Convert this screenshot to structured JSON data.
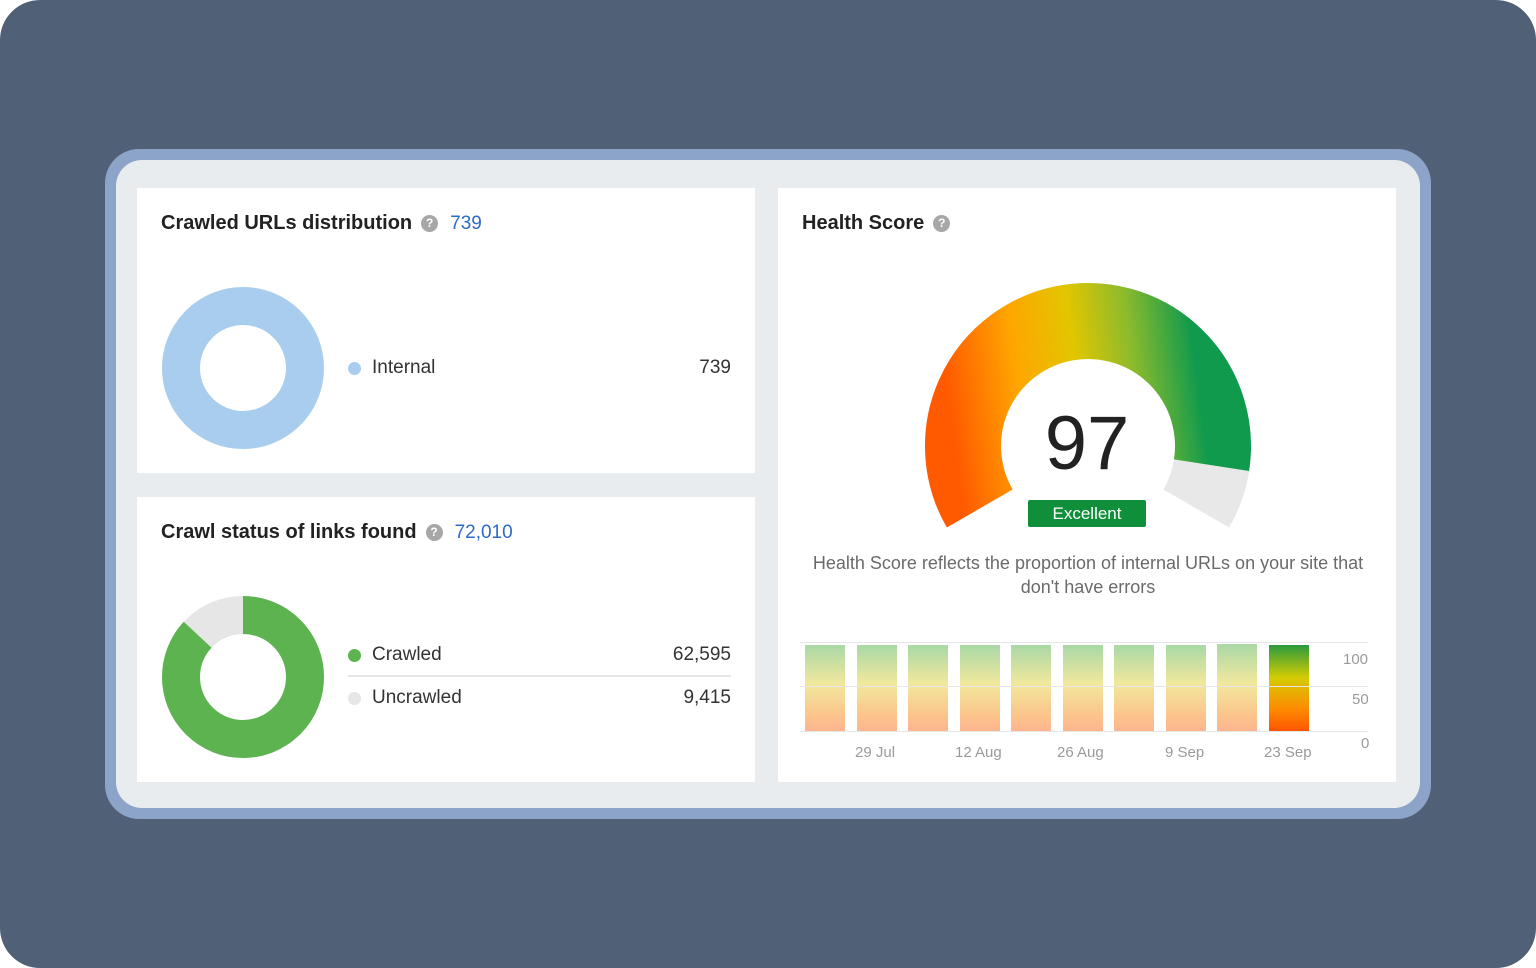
{
  "crawled_urls": {
    "title": "Crawled URLs distribution",
    "help_icon": "?",
    "total": "739",
    "legend": [
      {
        "label": "Internal",
        "value": "739",
        "color": "#a9cdee",
        "share": 1.0
      }
    ]
  },
  "crawl_status": {
    "title": "Crawl status of links found",
    "help_icon": "?",
    "total": "72,010",
    "legend": [
      {
        "label": "Crawled",
        "value": "62,595",
        "color": "#5db350",
        "share": 0.869
      },
      {
        "label": "Uncrawled",
        "value": "9,415",
        "color": "#e6e6e6",
        "share": 0.131
      }
    ]
  },
  "health_score": {
    "title": "Health Score",
    "help_icon": "?",
    "score": "97",
    "score_value": 97,
    "status": "Excellent",
    "status_color": "#0f8f3a",
    "description": "Health Score reflects the proportion of internal URLs on your site that don't have errors"
  },
  "chart_data": {
    "type": "bar",
    "values": [
      97,
      97,
      97,
      97,
      97,
      97,
      97,
      97,
      98,
      97
    ],
    "x_tick_labels": [
      "29 Jul",
      "12 Aug",
      "26 Aug",
      "9 Sep",
      "23 Sep"
    ],
    "y_tick_labels": [
      "100",
      "50",
      "0"
    ],
    "ylim": [
      0,
      100
    ],
    "highlight_last": true
  }
}
